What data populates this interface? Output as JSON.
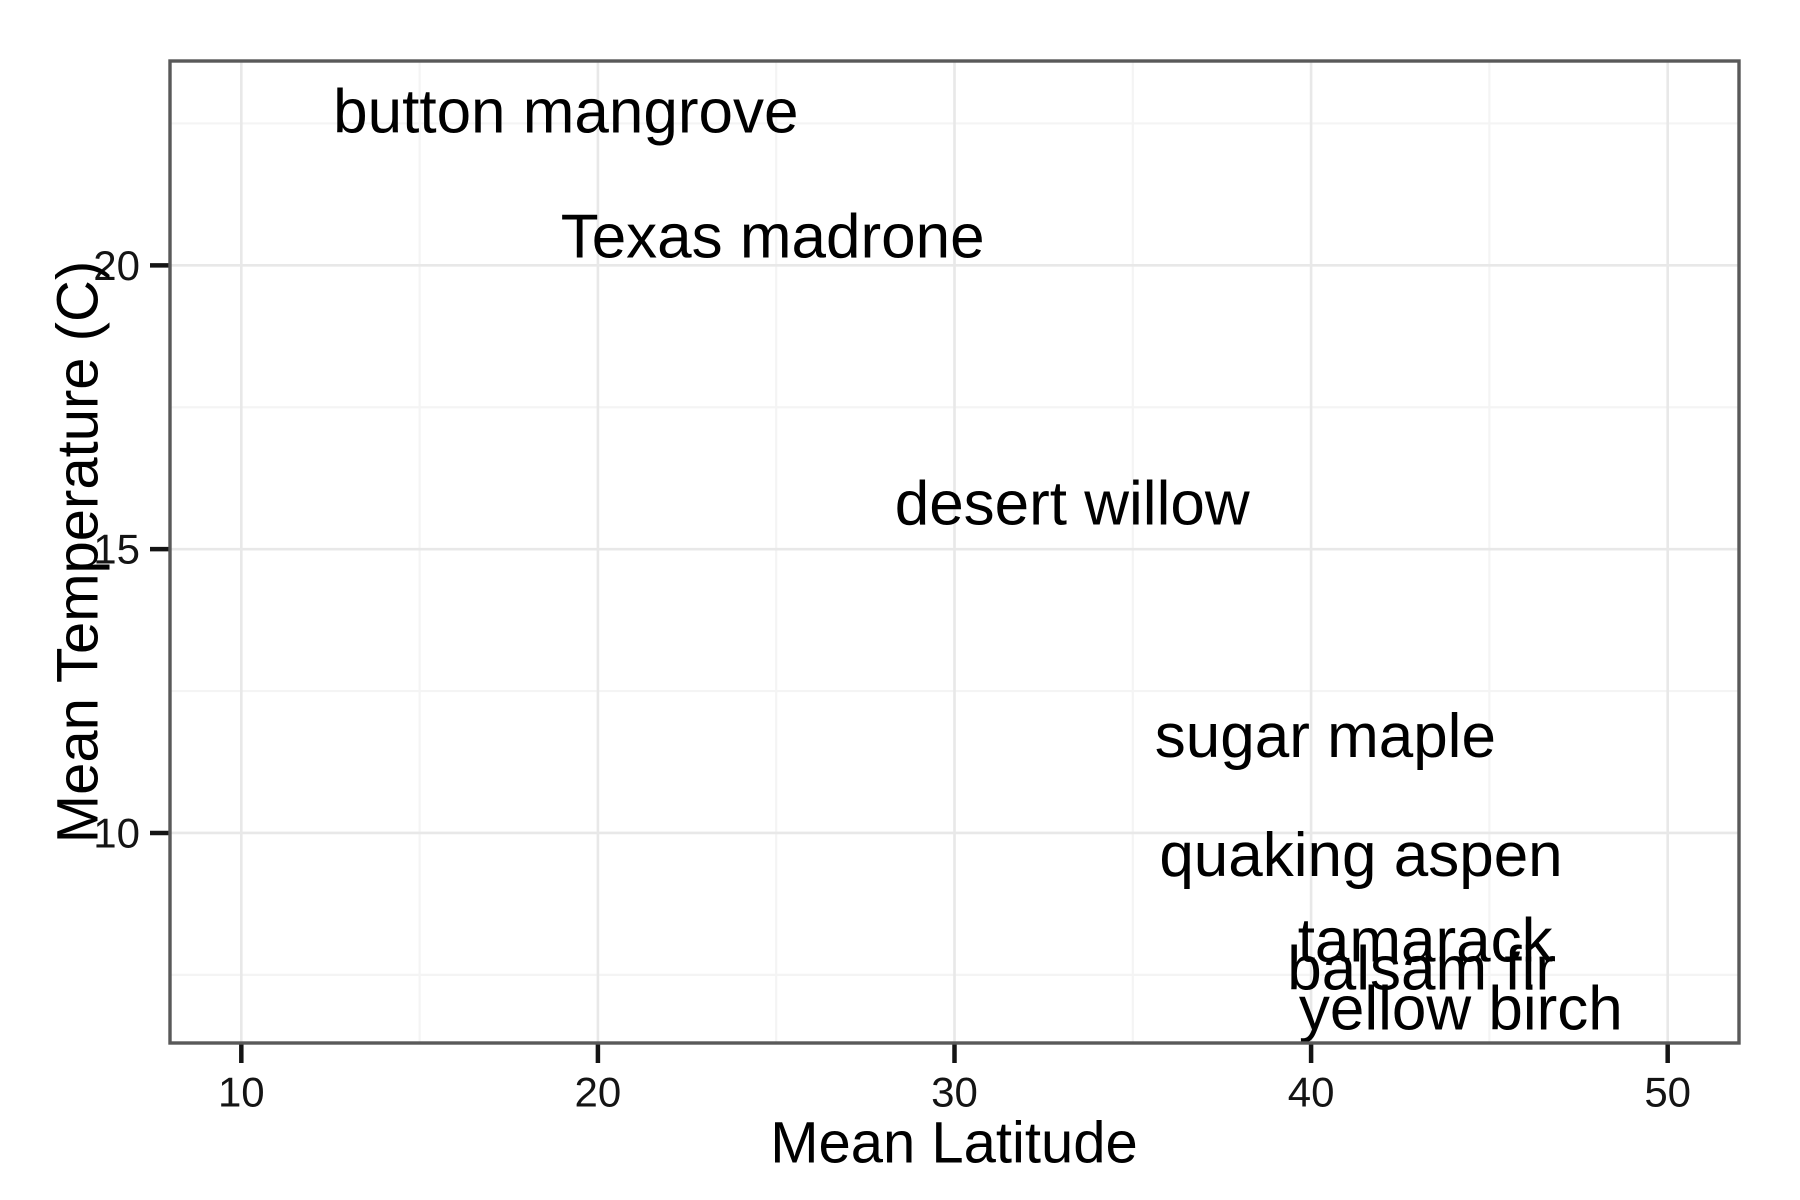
{
  "chart_data": {
    "type": "scatter",
    "title": "",
    "xlabel": "Mean Latitude",
    "ylabel": "Mean Temperature (C)",
    "xlim": [
      8.0,
      52.0
    ],
    "ylim": [
      6.3,
      23.6
    ],
    "x_ticks": [
      10,
      20,
      30,
      40,
      50
    ],
    "y_ticks": [
      10,
      15,
      20
    ],
    "x_minor_ticks": [
      15,
      25,
      35,
      45
    ],
    "y_minor_ticks": [
      7.5,
      12.5,
      17.5,
      22.5
    ],
    "grid": "on",
    "legend": "none",
    "marker": "text-label",
    "points": [
      {
        "label": "button mangrove",
        "x": 19.1,
        "y": 22.7
      },
      {
        "label": "Texas madrone",
        "x": 24.9,
        "y": 20.5
      },
      {
        "label": "desert willow",
        "x": 33.3,
        "y": 15.8
      },
      {
        "label": "sugar maple",
        "x": 40.4,
        "y": 11.7
      },
      {
        "label": "quaking aspen",
        "x": 41.4,
        "y": 9.6
      },
      {
        "label": "tamarack",
        "x": 43.2,
        "y": 8.1
      },
      {
        "label": "balsam fir",
        "x": 43.1,
        "y": 7.6
      },
      {
        "label": "yellow birch",
        "x": 44.2,
        "y": 6.9
      }
    ],
    "colors": {
      "background": "#ffffff",
      "panel_background": "#ffffff",
      "panel_border": "#595959",
      "grid_major": "#e8e8e8",
      "grid_minor": "#f4f4f4",
      "tick_mark": "#141414",
      "tick_label": "#141414",
      "axis_title": "#000000",
      "point_label": "#000000"
    }
  }
}
